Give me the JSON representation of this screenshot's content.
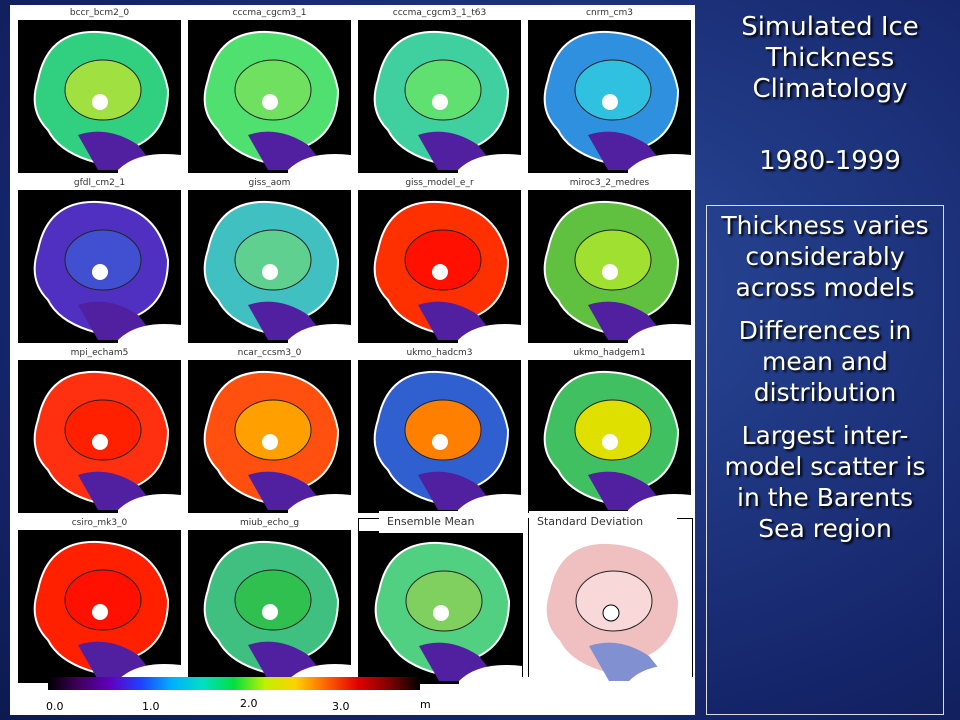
{
  "panels": [
    {
      "title": "bccr_bcm2_0"
    },
    {
      "title": "cccma_cgcm3_1"
    },
    {
      "title": "cccma_cgcm3_1_t63"
    },
    {
      "title": "cnrm_cm3"
    },
    {
      "title": "gfdl_cm2_1"
    },
    {
      "title": "giss_aom"
    },
    {
      "title": "giss_model_e_r"
    },
    {
      "title": "miroc3_2_medres"
    },
    {
      "title": "mpi_echam5"
    },
    {
      "title": "ncar_ccsm3_0"
    },
    {
      "title": "ukmo_hadcm3"
    },
    {
      "title": "ukmo_hadgem1"
    },
    {
      "title": "csiro_mk3_0"
    },
    {
      "title": "miub_echo_g"
    }
  ],
  "ensemble": {
    "title": "Ensemble Mean"
  },
  "std": {
    "title": "Standard Deviation"
  },
  "colorbar": {
    "labels": [
      "0.0",
      "1.0",
      "2.0",
      "3.0"
    ],
    "unit": "m"
  },
  "sidebar": {
    "title": "Simulated Ice Thickness Climatology",
    "period": "1980-1999",
    "points": [
      "Thickness varies considerably across models",
      "Differences in mean and distribution",
      "Largest inter-model scatter is in the Barents Sea region"
    ]
  }
}
